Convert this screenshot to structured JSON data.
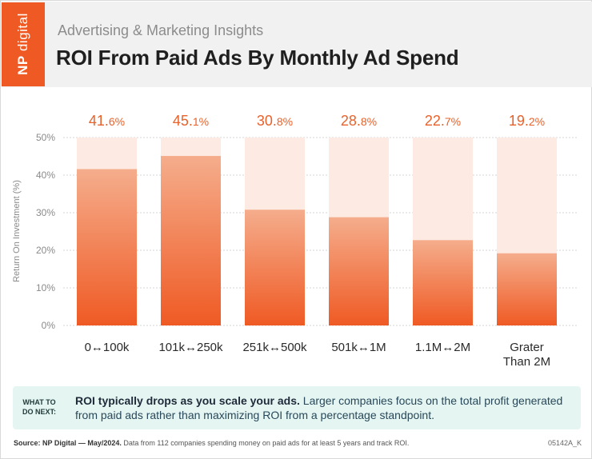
{
  "header": {
    "logo_text_np": "NP",
    "logo_text_rest": "digital",
    "eyebrow": "Advertising & Marketing Insights",
    "title": "ROI From Paid Ads By Monthly Ad Spend"
  },
  "colors": {
    "brand_orange": "#ef5a24",
    "bar_top": "#f5ad8c",
    "bar_bottom": "#ef5a24",
    "bar_track": "#fdebe3",
    "value_label": "#e8622b"
  },
  "chart_data": {
    "type": "bar",
    "title": "",
    "xlabel": "",
    "ylabel": "Return On Investment (%)",
    "ylim": [
      0,
      50
    ],
    "yticks": [
      "0%",
      "10%",
      "20%",
      "30%",
      "40%",
      "50%"
    ],
    "grid": true,
    "categories": [
      "0↔100k",
      "101k↔250k",
      "251k↔500k",
      "501k↔1M",
      "1.1M↔2M",
      "Grater Than 2M"
    ],
    "values": [
      41.6,
      45.1,
      30.8,
      28.8,
      22.7,
      19.2
    ],
    "value_labels": [
      {
        "num": "41.",
        "dec": "6%"
      },
      {
        "num": "45.",
        "dec": "1%"
      },
      {
        "num": "30.",
        "dec": "8%"
      },
      {
        "num": "28.",
        "dec": "8%"
      },
      {
        "num": "22.",
        "dec": "7%"
      },
      {
        "num": "19.",
        "dec": "2%"
      }
    ]
  },
  "callout": {
    "tag": "WHAT TO DO NEXT:",
    "strong": "ROI typically drops as you scale your ads.",
    "text": " Larger companies focus on the total profit generated from paid ads rather than maximizing ROI from a percentage standpoint."
  },
  "footer": {
    "source": "Source: NP Digital — May/2024.",
    "text": " Data from 112 companies spending money on paid ads for at least 5 years and track ROI.",
    "code": "05142A_K"
  }
}
